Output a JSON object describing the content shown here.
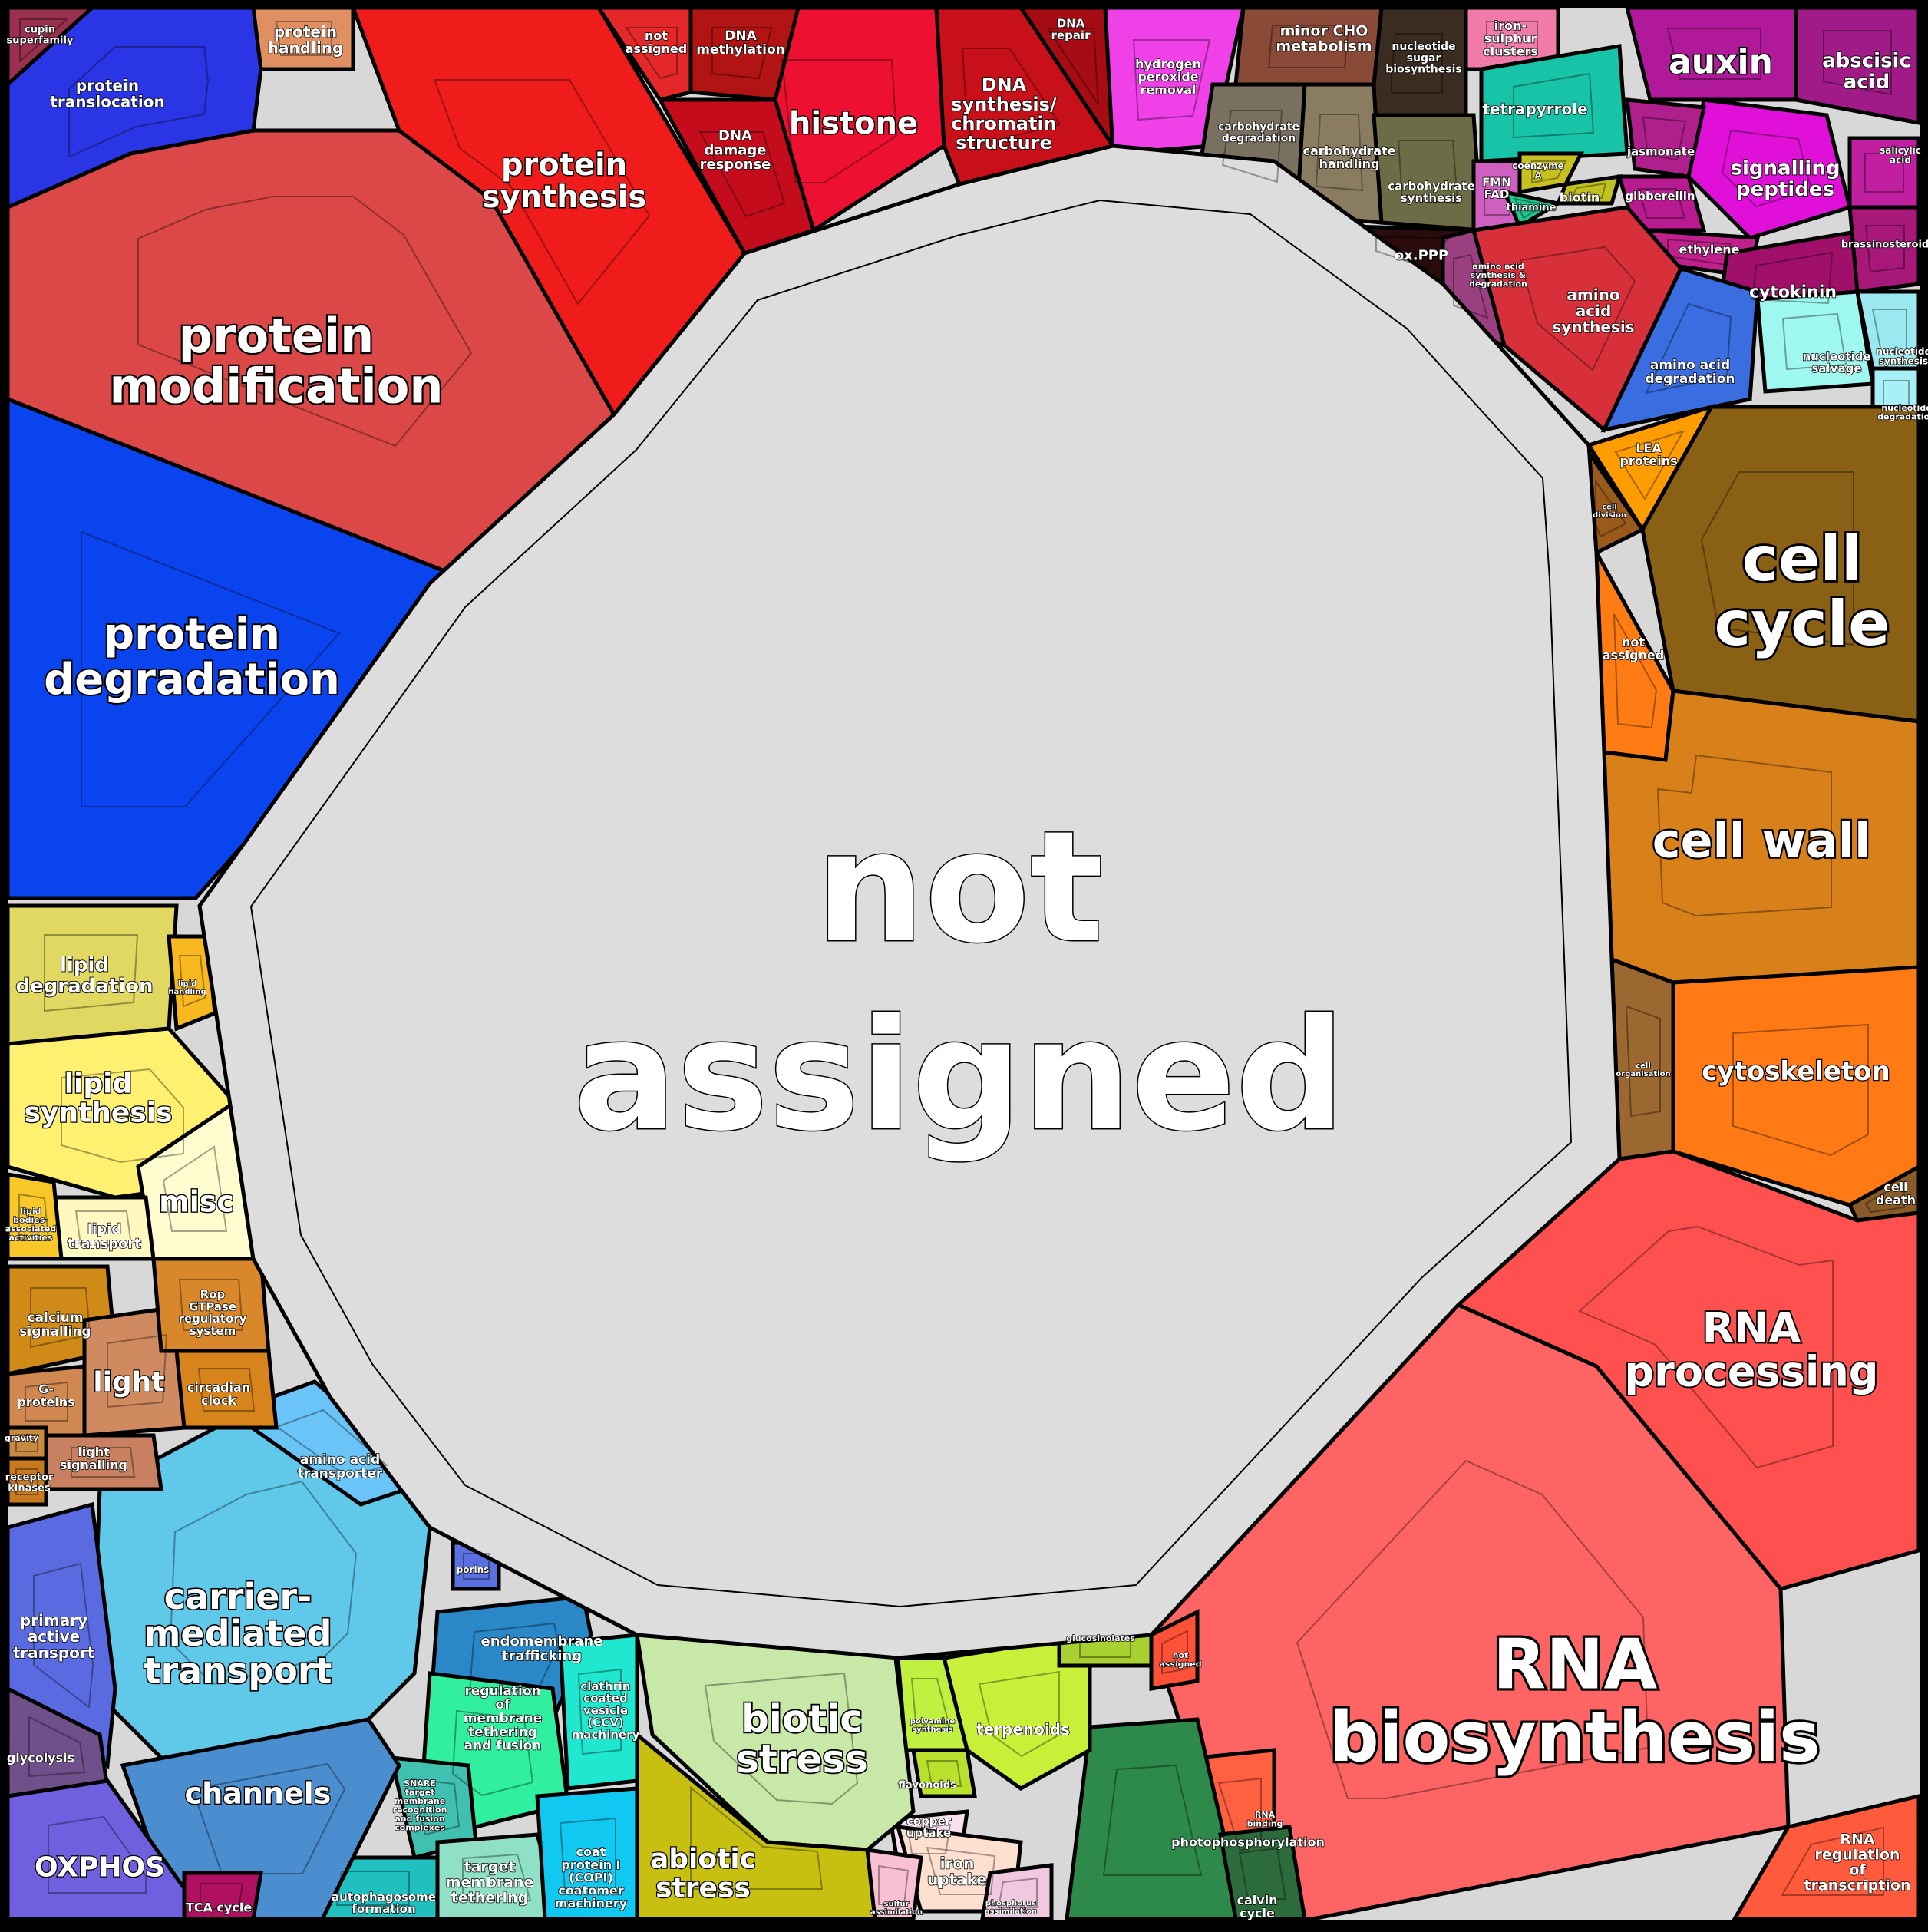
{
  "diagram": {
    "center": {
      "label_lines": [
        "not",
        "assigned"
      ],
      "color": "#dddddd"
    },
    "categories": [
      {
        "id": "protein-modification",
        "lines": [
          "protein",
          "modification"
        ],
        "color": "#dc4848"
      },
      {
        "id": "protein-degradation",
        "lines": [
          "protein",
          "degradation"
        ],
        "color": "#0a44ee"
      },
      {
        "id": "protein-synthesis",
        "lines": [
          "protein",
          "synthesis"
        ],
        "color": "#f01c1c"
      },
      {
        "id": "protein-translocation",
        "lines": [
          "protein",
          "translocation"
        ],
        "color": "#2a36e6"
      },
      {
        "id": "protein-handling",
        "lines": [
          "protein",
          "handling"
        ],
        "color": "#e09060"
      },
      {
        "id": "cupin-superfamily",
        "lines": [
          "cupin",
          "superfamily"
        ],
        "color": "#9a3050"
      },
      {
        "id": "histone",
        "lines": [
          "histone"
        ],
        "color": "#ee1030"
      },
      {
        "id": "dna-synthesis",
        "lines": [
          "DNA",
          "synthesis/",
          "chromatin",
          "structure"
        ],
        "color": "#c8101a"
      },
      {
        "id": "dna-damage-response",
        "lines": [
          "DNA",
          "damage",
          "response"
        ],
        "color": "#c40c1c"
      },
      {
        "id": "dna-methylation",
        "lines": [
          "DNA",
          "methylation"
        ],
        "color": "#b21414"
      },
      {
        "id": "dna-not-assigned",
        "lines": [
          "not",
          "assigned"
        ],
        "color": "#e4282a"
      },
      {
        "id": "dna-repair",
        "lines": [
          "DNA",
          "repair"
        ],
        "color": "#a60c14"
      },
      {
        "id": "hydrogen-peroxide-removal",
        "lines": [
          "hydrogen",
          "peroxide",
          "removal"
        ],
        "color": "#f040e8"
      },
      {
        "id": "minor-cho-metabolism",
        "lines": [
          "minor CHO",
          "metabolism"
        ],
        "color": "#8a4a38"
      },
      {
        "id": "nucleotide-sugar-biosynthesis",
        "lines": [
          "nucleotide",
          "sugar",
          "biosynthesis"
        ],
        "color": "#3a2c20"
      },
      {
        "id": "carbohydrate-degradation",
        "lines": [
          "carbohydrate",
          "degradation"
        ],
        "color": "#7a7060"
      },
      {
        "id": "carbohydrate-handling",
        "lines": [
          "carbohydrate",
          "handling"
        ],
        "color": "#8a7c60"
      },
      {
        "id": "carbohydrate-synthesis",
        "lines": [
          "carbohydrate",
          "synthesis"
        ],
        "color": "#6c6c46"
      },
      {
        "id": "ox-ppp",
        "lines": [
          "ox.PPP"
        ],
        "color": "#2a0c0c"
      },
      {
        "id": "iron-sulphur-clusters",
        "lines": [
          "iron-",
          "sulphur",
          "clusters"
        ],
        "color": "#f07aa8"
      },
      {
        "id": "tetrapyrrole",
        "lines": [
          "tetrapyrrole"
        ],
        "color": "#18c4a8"
      },
      {
        "id": "fmn-fad",
        "lines": [
          "FMN",
          "FAD"
        ],
        "color": "#d060c0"
      },
      {
        "id": "coenzyme-a",
        "lines": [
          "coenzyme",
          "A"
        ],
        "color": "#c8c020"
      },
      {
        "id": "biotin",
        "lines": [
          "biotin"
        ],
        "color": "#c0c020"
      },
      {
        "id": "thiamine",
        "lines": [
          "thiamine"
        ],
        "color": "#20c890"
      },
      {
        "id": "auxin",
        "lines": [
          "auxin"
        ],
        "color": "#b01a9a"
      },
      {
        "id": "abscisic-acid",
        "lines": [
          "abscisic",
          "acid"
        ],
        "color": "#a01a88"
      },
      {
        "id": "signalling-peptides",
        "lines": [
          "signalling",
          "peptides"
        ],
        "color": "#e010d8"
      },
      {
        "id": "jasmonate",
        "lines": [
          "jasmonate"
        ],
        "color": "#b0208c"
      },
      {
        "id": "gibberellin",
        "lines": [
          "gibberellin"
        ],
        "color": "#b81a90"
      },
      {
        "id": "ethylene",
        "lines": [
          "ethylene"
        ],
        "color": "#c0208c"
      },
      {
        "id": "cytokinin",
        "lines": [
          "cytokinin"
        ],
        "color": "#a0106a"
      },
      {
        "id": "brassinosteroid",
        "lines": [
          "brassinosteroid"
        ],
        "color": "#a81878"
      },
      {
        "id": "salicylic-acid",
        "lines": [
          "salicylic",
          "acid"
        ],
        "color": "#c020a0"
      },
      {
        "id": "amino-acid-synthesis",
        "lines": [
          "amino",
          "acid",
          "synthesis"
        ],
        "color": "#d8303a"
      },
      {
        "id": "amino-acid-synthesis-degradation",
        "lines": [
          "amino acid",
          "synthesis &",
          "degradation"
        ],
        "color": "#9a4080"
      },
      {
        "id": "amino-acid-degradation",
        "lines": [
          "amino acid",
          "degradation"
        ],
        "color": "#3a6ee0"
      },
      {
        "id": "nucleotide-salvage",
        "lines": [
          "nucleotide",
          "salvage"
        ],
        "color": "#9ef8f0"
      },
      {
        "id": "nucleotide-synthesis",
        "lines": [
          "nucleotide",
          "synthesis"
        ],
        "color": "#9ae8f0"
      },
      {
        "id": "nucleotide-degradation",
        "lines": [
          "nucleotide",
          "degradation"
        ],
        "color": "#a8f0f8"
      },
      {
        "id": "lea-proteins",
        "lines": [
          "LEA",
          "proteins"
        ],
        "color": "#ff9c00"
      },
      {
        "id": "cell-division",
        "lines": [
          "cell",
          "division"
        ],
        "color": "#9a5a1c"
      },
      {
        "id": "cell-cycle",
        "lines": [
          "cell",
          "cycle"
        ],
        "color": "#8a6014"
      },
      {
        "id": "cell-not-assigned",
        "lines": [
          "not",
          "assigned"
        ],
        "color": "#ff7c14"
      },
      {
        "id": "cell-wall",
        "lines": [
          "cell wall"
        ],
        "color": "#d8801a"
      },
      {
        "id": "cell-organisation",
        "lines": [
          "cell",
          "organisation"
        ],
        "color": "#9a6830"
      },
      {
        "id": "cytoskeleton",
        "lines": [
          "cytoskeleton"
        ],
        "color": "#ff7a14"
      },
      {
        "id": "cell-death",
        "lines": [
          "cell",
          "death"
        ],
        "color": "#8a5a28"
      },
      {
        "id": "rna-processing",
        "lines": [
          "RNA",
          "processing"
        ],
        "color": "#ff5050"
      },
      {
        "id": "rna-biosynthesis",
        "lines": [
          "RNA",
          "biosynthesis"
        ],
        "color": "#ff6464"
      },
      {
        "id": "rna-not-assigned",
        "lines": [
          "not",
          "assigned"
        ],
        "color": "#ff5038"
      },
      {
        "id": "rna-binding",
        "lines": [
          "RNA",
          "binding"
        ],
        "color": "#ff6040"
      },
      {
        "id": "rna-regulation-of-transcription",
        "lines": [
          "RNA",
          "regulation",
          "of",
          "transcription"
        ],
        "color": "#ff5a3c"
      },
      {
        "id": "photophosphorylation",
        "lines": [
          "photophosphorylation"
        ],
        "color": "#2e8a4a"
      },
      {
        "id": "calvin-cycle",
        "lines": [
          "calvin",
          "cycle"
        ],
        "color": "#2c6c3c"
      },
      {
        "id": "terpenoids",
        "lines": [
          "terpenoids"
        ],
        "color": "#c8f038"
      },
      {
        "id": "flavonoids",
        "lines": [
          "flavonoids"
        ],
        "color": "#b8e02c"
      },
      {
        "id": "polyamine-synthesis",
        "lines": [
          "polyamine",
          "synthesis"
        ],
        "color": "#c0f040"
      },
      {
        "id": "glucosinolates",
        "lines": [
          "glucosinolates"
        ],
        "color": "#a8d030"
      },
      {
        "id": "copper-uptake",
        "lines": [
          "copper",
          "uptake"
        ],
        "color": "#f8e0f0"
      },
      {
        "id": "iron-uptake",
        "lines": [
          "iron",
          "uptake"
        ],
        "color": "#ffe0d0"
      },
      {
        "id": "sulfur-assimilation",
        "lines": [
          "sulfur",
          "assimilation"
        ],
        "color": "#f8c0d0"
      },
      {
        "id": "phosphorus-assimilation",
        "lines": [
          "phosphorus",
          "assimilation"
        ],
        "color": "#f0c8e0"
      },
      {
        "id": "biotic-stress",
        "lines": [
          "biotic",
          "stress"
        ],
        "color": "#c8e8a8"
      },
      {
        "id": "abiotic-stress",
        "lines": [
          "abiotic",
          "stress"
        ],
        "color": "#c8c010"
      },
      {
        "id": "endomembrane-trafficking",
        "lines": [
          "endomembrane",
          "trafficking"
        ],
        "color": "#2a88c8"
      },
      {
        "id": "regulation-of-membrane-tethering",
        "lines": [
          "regulation",
          "of",
          "membrane",
          "tethering",
          "and fusion"
        ],
        "color": "#30f0a0"
      },
      {
        "id": "clathrin-coated-vesicle",
        "lines": [
          "clathrin",
          "coated",
          "vesicle",
          "(CCV)",
          "machinery"
        ],
        "color": "#20e8d0"
      },
      {
        "id": "snare",
        "lines": [
          "SNARE",
          "target",
          "membrane",
          "recognition",
          "and fusion",
          "complexes"
        ],
        "color": "#40c0b0"
      },
      {
        "id": "target-membrane-tethering",
        "lines": [
          "target",
          "membrane",
          "tethering"
        ],
        "color": "#90e0c8"
      },
      {
        "id": "copi",
        "lines": [
          "coat",
          "protein I",
          "(COPI)",
          "coatomer",
          "machinery"
        ],
        "color": "#10c8f0"
      },
      {
        "id": "autophagosome-formation",
        "lines": [
          "autophagosome",
          "formation"
        ],
        "color": "#20c0c0"
      },
      {
        "id": "porins",
        "lines": [
          "porins"
        ],
        "color": "#5a70e0"
      },
      {
        "id": "carrier-mediated-transport",
        "lines": [
          "carrier-",
          "mediated",
          "transport"
        ],
        "color": "#60c8e8"
      },
      {
        "id": "amino-acid-transporter",
        "lines": [
          "amino acid",
          "transporter"
        ],
        "color": "#6ac4f8"
      },
      {
        "id": "channels",
        "lines": [
          "channels"
        ],
        "color": "#4a8ed0"
      },
      {
        "id": "primary-active-transport",
        "lines": [
          "primary",
          "active",
          "transport"
        ],
        "color": "#5a6ae0"
      },
      {
        "id": "glycolysis",
        "lines": [
          "glycolysis"
        ],
        "color": "#70508a"
      },
      {
        "id": "oxphos",
        "lines": [
          "OXPHOS"
        ],
        "color": "#7060e0"
      },
      {
        "id": "tca-cycle",
        "lines": [
          "TCA cycle"
        ],
        "color": "#b01060"
      },
      {
        "id": "calcium-signalling",
        "lines": [
          "calcium",
          "signalling"
        ],
        "color": "#d08a18"
      },
      {
        "id": "light",
        "lines": [
          "light"
        ],
        "color": "#d08a60"
      },
      {
        "id": "rop-gtpase",
        "lines": [
          "Rop",
          "GTPase",
          "regulatory",
          "system"
        ],
        "color": "#d8882a"
      },
      {
        "id": "circadian-clock",
        "lines": [
          "circadian",
          "clock"
        ],
        "color": "#d8841c"
      },
      {
        "id": "g-proteins",
        "lines": [
          "G-",
          "proteins"
        ],
        "color": "#d08850"
      },
      {
        "id": "light-signalling",
        "lines": [
          "light",
          "signalling"
        ],
        "color": "#c88060"
      },
      {
        "id": "gravity",
        "lines": [
          "gravity"
        ],
        "color": "#c88a40"
      },
      {
        "id": "receptor-kinases",
        "lines": [
          "receptor",
          "kinases"
        ],
        "color": "#c87820"
      },
      {
        "id": "lipid-degradation",
        "lines": [
          "lipid",
          "degradation"
        ],
        "color": "#e0d860"
      },
      {
        "id": "lipid-handling",
        "lines": [
          "lipid",
          "handling"
        ],
        "color": "#f8b820"
      },
      {
        "id": "lipid-synthesis",
        "lines": [
          "lipid",
          "synthesis"
        ],
        "color": "#fff070"
      },
      {
        "id": "misc",
        "lines": [
          "misc"
        ],
        "color": "#fffcd0"
      },
      {
        "id": "lipid-transport",
        "lines": [
          "lipid",
          "transport"
        ],
        "color": "#fff8c0"
      },
      {
        "id": "lipid-bodies",
        "lines": [
          "lipid",
          "bodies-",
          "associated",
          "activities"
        ],
        "color": "#f8c828"
      }
    ]
  }
}
